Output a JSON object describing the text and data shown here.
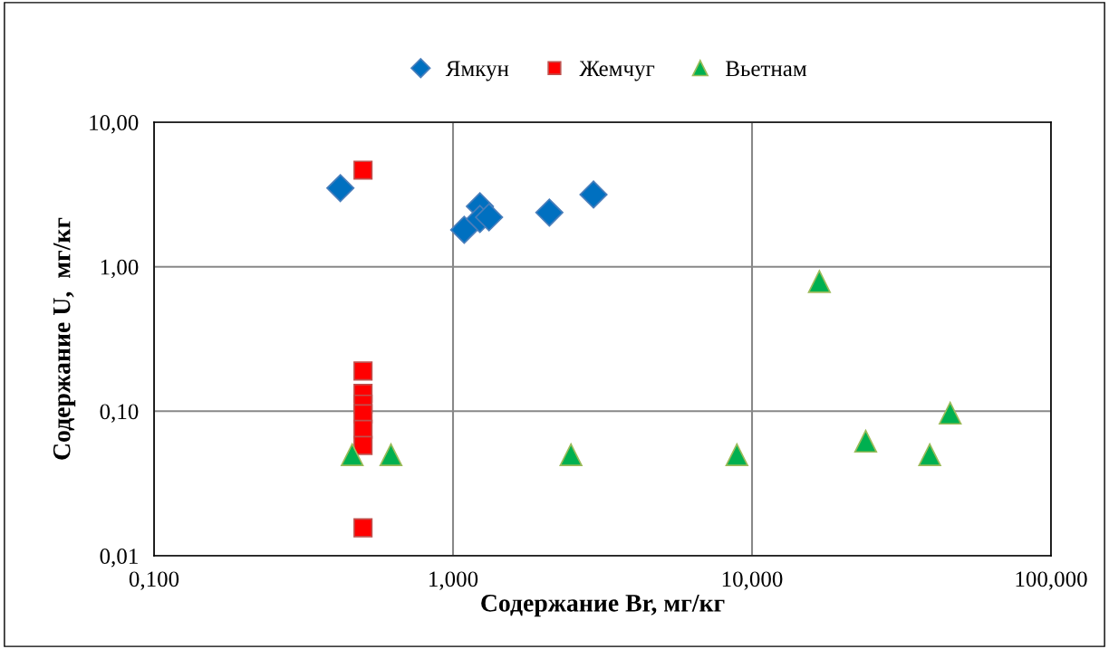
{
  "chart_data": {
    "type": "scatter",
    "xlabel": "Содержание Br, мг/кг",
    "ylabel": "Содержание U,  мг/кг",
    "log": "xy",
    "grid": true,
    "legend": "top",
    "xlim": [
      0.1,
      100
    ],
    "ylim": [
      0.01,
      10
    ],
    "xticks": [
      {
        "value": 0.1,
        "label": "0,100"
      },
      {
        "value": 1,
        "label": "1,000"
      },
      {
        "value": 10,
        "label": "10,000"
      },
      {
        "value": 100,
        "label": "100,000"
      }
    ],
    "yticks": [
      {
        "value": 0.01,
        "label": "0,01"
      },
      {
        "value": 0.1,
        "label": "0,10"
      },
      {
        "value": 1,
        "label": "1,00"
      },
      {
        "value": 10,
        "label": "10,00"
      }
    ],
    "series": [
      {
        "name": "Ямкун",
        "color": "#0070c0",
        "marker": "diamond",
        "x": [
          0.42,
          1.09,
          1.23,
          1.23,
          1.32,
          2.1,
          2.95
        ],
        "values": [
          3.5,
          1.8,
          2.62,
          2.14,
          2.2,
          2.37,
          3.16
        ]
      },
      {
        "name": "Жемчуг",
        "color": "#ff0000",
        "marker": "square",
        "x": [
          0.5,
          0.5,
          0.5,
          0.5,
          0.5,
          0.5,
          0.5,
          0.5
        ],
        "values": [
          4.66,
          0.19,
          0.133,
          0.112,
          0.096,
          0.075,
          0.058,
          0.0156
        ]
      },
      {
        "name": "Вьетнам",
        "color": "#00b050",
        "marker": "triangle",
        "x": [
          0.46,
          0.62,
          2.48,
          8.9,
          16.8,
          24,
          39.3,
          46
        ],
        "values": [
          0.05,
          0.05,
          0.05,
          0.05,
          0.79,
          0.062,
          0.05,
          0.097
        ]
      }
    ]
  }
}
